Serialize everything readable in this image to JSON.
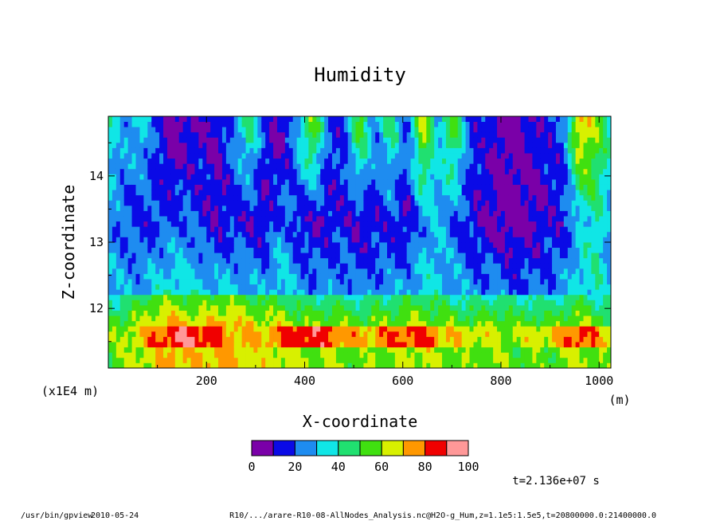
{
  "chart_data": {
    "type": "heatmap",
    "title": "Humidity",
    "xlabel": "X-coordinate",
    "ylabel": "Z-coordinate",
    "x_units": "(m)",
    "y_units": "(x1E4 m)",
    "xlim": [
      0,
      1024
    ],
    "ylim": [
      11.1,
      14.9
    ],
    "x_ticks": [
      200,
      400,
      600,
      800,
      1000
    ],
    "y_ticks": [
      12,
      13,
      14
    ],
    "x_tick_labels": [
      "200",
      "400",
      "600",
      "800",
      "1000"
    ],
    "y_tick_labels": [
      "12",
      "13",
      "14"
    ],
    "colorbar": {
      "levels": [
        0,
        10,
        20,
        30,
        40,
        50,
        60,
        70,
        80,
        90,
        100
      ],
      "labels": [
        "0",
        "20",
        "40",
        "60",
        "80",
        "100"
      ],
      "colors": [
        "#7a00a8",
        "#0a0ae6",
        "#1e8cf0",
        "#10e6e6",
        "#20e070",
        "#40e010",
        "#d8f000",
        "#ff9800",
        "#f00000",
        "#ff9898"
      ]
    },
    "time_label": "t=2.136e+07 s",
    "columns": {
      "x": [
        0,
        32,
        64,
        96,
        128,
        160,
        192,
        224,
        256,
        288,
        320,
        352,
        384,
        416,
        448,
        480,
        512,
        544,
        576,
        608,
        640,
        672,
        704,
        736,
        768,
        800,
        832,
        864,
        896,
        928,
        960,
        992,
        1024
      ],
      "upper": [
        40,
        25,
        35,
        18,
        5,
        8,
        12,
        10,
        25,
        45,
        15,
        5,
        30,
        60,
        20,
        15,
        55,
        25,
        45,
        20,
        65,
        30,
        55,
        18,
        15,
        8,
        5,
        12,
        15,
        20,
        75,
        60,
        40
      ],
      "mid": [
        25,
        20,
        15,
        18,
        20,
        22,
        15,
        10,
        15,
        12,
        10,
        25,
        15,
        10,
        12,
        15,
        10,
        12,
        15,
        10,
        25,
        30,
        20,
        15,
        10,
        5,
        5,
        8,
        12,
        15,
        30,
        40,
        25
      ],
      "low": [
        55,
        60,
        65,
        70,
        75,
        72,
        70,
        75,
        72,
        70,
        65,
        68,
        62,
        60,
        64,
        60,
        58,
        62,
        60,
        64,
        66,
        62,
        60,
        58,
        60,
        62,
        55,
        60,
        55,
        62,
        65,
        60,
        55
      ],
      "band": [
        55,
        60,
        70,
        78,
        85,
        90,
        85,
        80,
        72,
        70,
        72,
        78,
        85,
        88,
        82,
        76,
        70,
        74,
        78,
        82,
        82,
        74,
        68,
        66,
        64,
        60,
        62,
        64,
        66,
        76,
        84,
        76,
        64
      ]
    }
  },
  "footer": {
    "program": "/usr/bin/gpview",
    "date": "2010-05-24",
    "source": "R10/.../arare-R10-08-AllNodes_Analysis.nc@H2O-g_Hum,z=1.1e5:1.5e5,t=20800000.0:21400000.0"
  }
}
